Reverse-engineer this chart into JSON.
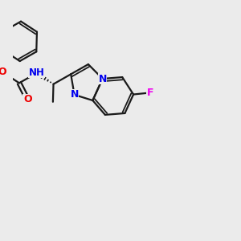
{
  "background_color": "#ebebeb",
  "bond_color": "#1a1a1a",
  "atom_colors": {
    "N": "#0000ee",
    "O": "#ee0000",
    "F": "#ee00ee",
    "C": "#1a1a1a"
  },
  "figsize": [
    3.0,
    3.0
  ],
  "dpi": 100,
  "bond_lw": 1.6,
  "font_size": 9
}
